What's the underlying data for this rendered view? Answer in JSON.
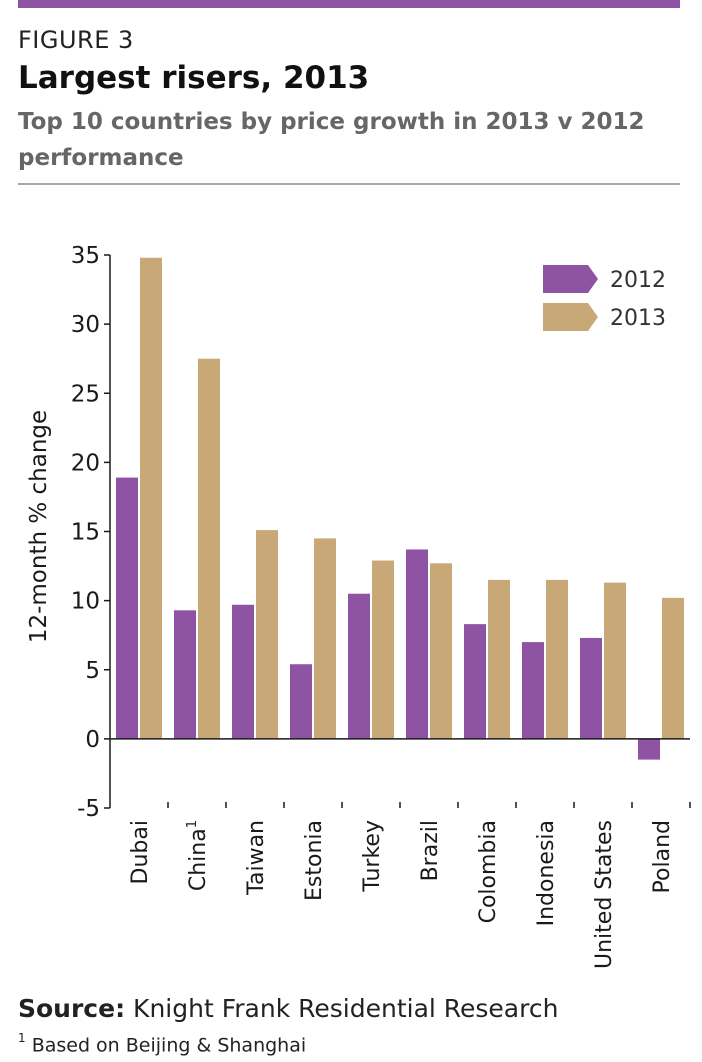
{
  "header": {
    "figure_label": "FIGURE 3",
    "title": "Largest risers, 2013",
    "subtitle": "Top 10 countries by price growth in 2013 v 2012 performance"
  },
  "colors": {
    "accent": "#8e54a3",
    "series_2012": "#8e54a3",
    "series_2013": "#c8a877",
    "rule": "#a8a8a8"
  },
  "chart_data": {
    "type": "bar",
    "categories": [
      "Dubai",
      "China",
      "Taiwan",
      "Estonia",
      "Turkey",
      "Brazil",
      "Colombia",
      "Indonesia",
      "United States",
      "Poland"
    ],
    "category_superscripts": [
      "",
      "1",
      "",
      "",
      "",
      "",
      "",
      "",
      "",
      ""
    ],
    "series": [
      {
        "name": "2012",
        "values": [
          18.9,
          9.3,
          9.7,
          5.4,
          10.5,
          13.7,
          8.3,
          7.0,
          7.3,
          -1.5
        ]
      },
      {
        "name": "2013",
        "values": [
          34.8,
          27.5,
          15.1,
          14.5,
          12.9,
          12.7,
          11.5,
          11.5,
          11.3,
          10.2
        ]
      }
    ],
    "ylabel": "12-month % change",
    "xlabel": "",
    "ylim": [
      -5,
      35
    ],
    "yticks": [
      -5,
      0,
      5,
      10,
      15,
      20,
      25,
      30,
      35
    ],
    "legend_position": "top-right",
    "grid": false
  },
  "footer": {
    "source_label": "Source:",
    "source_text": "Knight Frank Residential Research",
    "footnote_mark": "1",
    "footnote_text": "Based on Beijing & Shanghai"
  }
}
